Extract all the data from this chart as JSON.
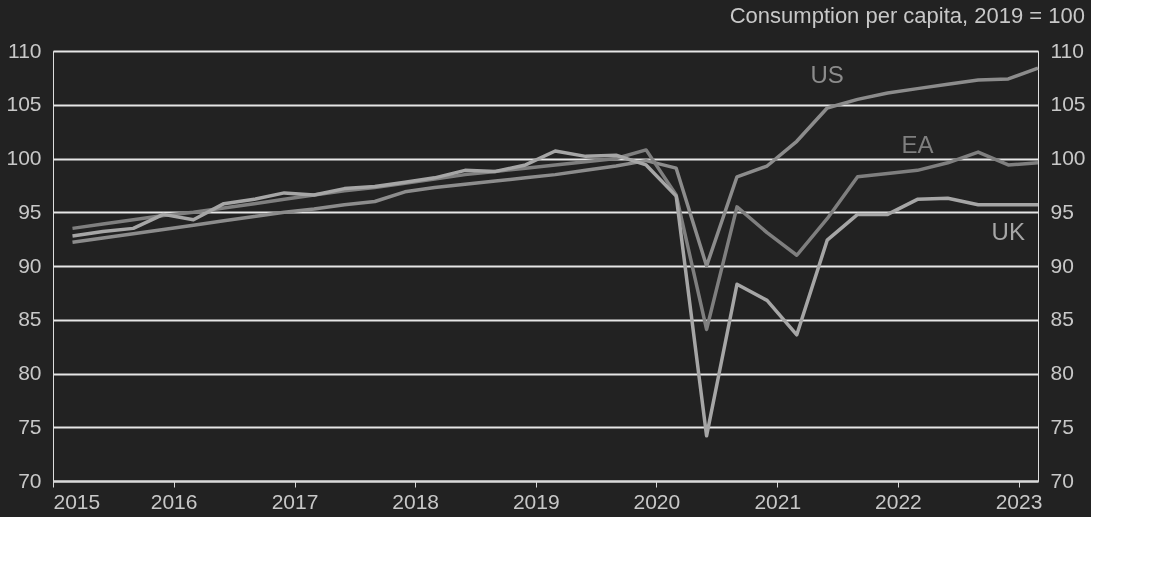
{
  "chart_data": {
    "type": "line",
    "title": "Consumption per capita, 2019 = 100",
    "x": [
      "2015-03",
      "2015-06",
      "2015-09",
      "2015-12",
      "2016-03",
      "2016-06",
      "2016-09",
      "2016-12",
      "2017-03",
      "2017-06",
      "2017-09",
      "2017-12",
      "2018-03",
      "2018-06",
      "2018-09",
      "2018-12",
      "2019-03",
      "2019-06",
      "2019-09",
      "2019-12",
      "2020-03",
      "2020-06",
      "2020-09",
      "2020-12",
      "2021-03",
      "2021-06",
      "2021-09",
      "2021-12",
      "2022-03",
      "2022-06",
      "2022-09",
      "2022-12",
      "2023-03"
    ],
    "series": [
      {
        "name": "US",
        "color": "#8c8c8c",
        "values": [
          92.2,
          92.6,
          93.0,
          93.4,
          93.8,
          94.2,
          94.6,
          95.0,
          95.3,
          95.7,
          96.0,
          96.9,
          97.3,
          97.6,
          97.9,
          98.2,
          98.5,
          98.9,
          99.3,
          99.8,
          99.1,
          90.0,
          98.3,
          99.3,
          101.6,
          104.7,
          105.5,
          106.1,
          106.5,
          106.9,
          107.3,
          107.4,
          108.4
        ]
      },
      {
        "name": "EA",
        "color": "#7f7f7f",
        "values": [
          93.5,
          93.9,
          94.3,
          94.7,
          95.0,
          95.4,
          95.8,
          96.2,
          96.6,
          97.0,
          97.3,
          97.7,
          98.1,
          98.5,
          98.8,
          99.1,
          99.4,
          99.7,
          100.0,
          100.8,
          96.6,
          84.1,
          95.5,
          93.1,
          91.0,
          94.4,
          98.3,
          98.6,
          98.9,
          99.6,
          100.6,
          99.4,
          99.6
        ]
      },
      {
        "name": "UK",
        "color": "#a6a6a6",
        "values": [
          92.8,
          93.2,
          93.5,
          94.8,
          94.3,
          95.8,
          96.2,
          96.8,
          96.6,
          97.2,
          97.4,
          97.8,
          98.2,
          98.9,
          98.8,
          99.4,
          100.7,
          100.2,
          100.3,
          99.4,
          96.5,
          74.2,
          88.3,
          86.8,
          83.6,
          92.4,
          94.8,
          94.8,
          96.2,
          96.3,
          95.7,
          95.7,
          95.7
        ]
      }
    ],
    "xlim": [
      "2015-01",
      "2023-03"
    ],
    "xticks": [
      "2015",
      "2016",
      "2017",
      "2018",
      "2019",
      "2020",
      "2021",
      "2022",
      "2023"
    ],
    "ylim": [
      70,
      110
    ],
    "yticks": [
      70,
      75,
      80,
      85,
      90,
      95,
      100,
      105,
      110
    ],
    "y2lim": [
      70,
      110
    ],
    "y2ticks": [
      70,
      75,
      80,
      85,
      90,
      95,
      100,
      105,
      110
    ],
    "grid": "y",
    "legend": false
  }
}
